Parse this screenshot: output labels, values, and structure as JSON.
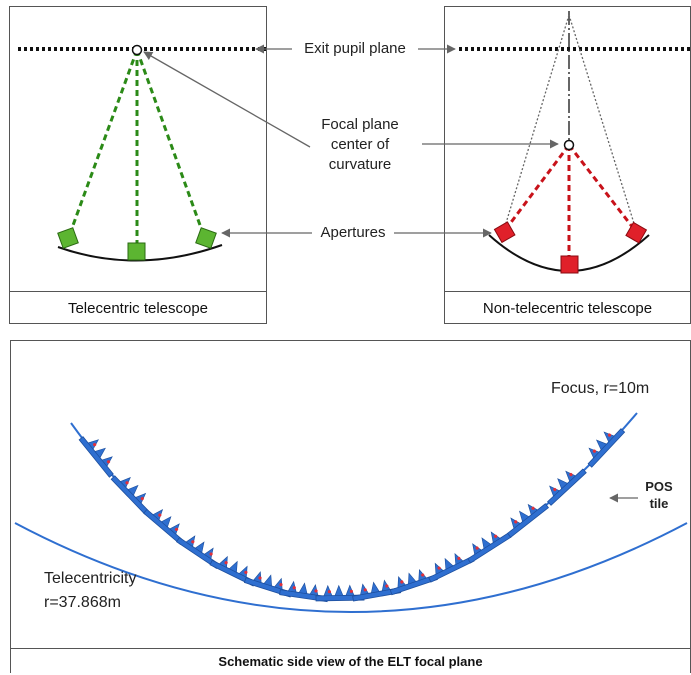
{
  "top_left_panel": {
    "caption": "Telecentric telescope"
  },
  "top_right_panel": {
    "caption": "Non-telecentric telescope"
  },
  "labels": {
    "exit_pupil": "Exit pupil plane",
    "focal_center_line1": "Focal plane",
    "focal_center_line2": "center of",
    "focal_center_line3": "curvature",
    "apertures": "Apertures"
  },
  "bottom_panel": {
    "caption": "Schematic side view of the ELT focal plane",
    "focus_label": "Focus, r=10m",
    "pos_tile_line1": "POS",
    "pos_tile_line2": "tile",
    "telecentricity_line1": "Telecentricity",
    "telecentricity_line2": "r=37.868m"
  },
  "colors": {
    "telecentric": "#5cb531",
    "non_telecentric": "#d9151b",
    "elt_blue": "#2f6fd0",
    "pointer_red": "#e0303a"
  }
}
